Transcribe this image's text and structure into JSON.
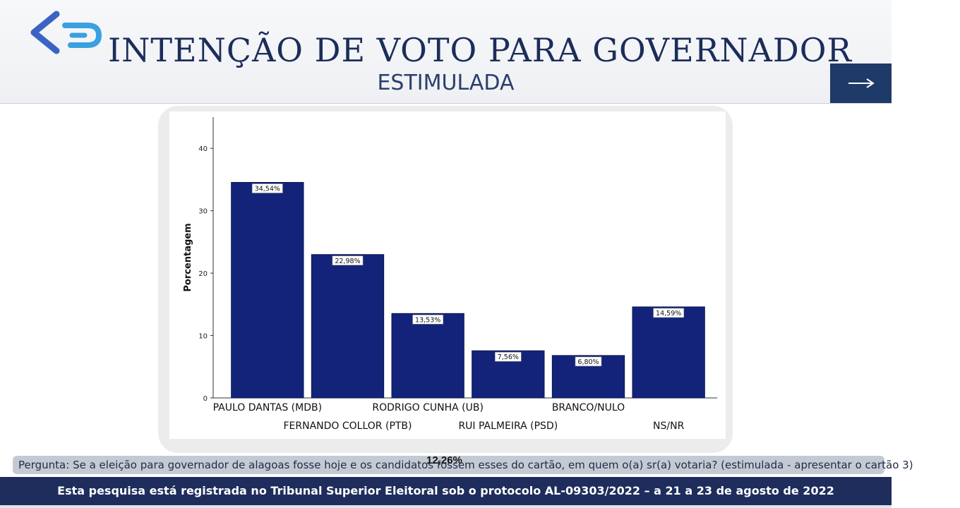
{
  "header": {
    "title": "INTENÇÃO DE VOTO PARA GOVERNADOR",
    "subtitle": "ESTIMULADA",
    "next_icon": "arrow-right-icon",
    "logo_icon": "brand-chevron-logo"
  },
  "colors": {
    "bar": "#13237a",
    "title": "#1c2d5a",
    "footer": "#1e2d5c",
    "button": "#1e3a68"
  },
  "chart_data": {
    "type": "bar",
    "categories": [
      "PAULO DANTAS (MDB)",
      "FERNANDO COLLOR (PTB)",
      "RODRIGO CUNHA (UB)",
      "RUI PALMEIRA (PSD)",
      "BRANCO/NULO",
      "NS/NR"
    ],
    "values": [
      34.54,
      22.98,
      13.53,
      7.56,
      6.8,
      14.59
    ],
    "value_labels": [
      "34,54%",
      "22,98%",
      "13,53%",
      "7,56%",
      "6,80%",
      "14,59%"
    ],
    "ylabel": "Porcentagem",
    "ylim": [
      0,
      45
    ],
    "yticks": [
      0,
      10,
      20,
      30,
      40
    ],
    "grid": false
  },
  "overlay_label": "12,26%",
  "question": "Pergunta: Se a eleição para governador de alagoas fosse hoje e os candidatos fossem esses do cartão, em quem o(a) sr(a) votaria? (estimulada - apresentar o cartão 3)",
  "footer": "Esta pesquisa está registrada no Tribunal Superior Eleitoral sob o protocolo AL-09303/2022 – a 21 a 23 de agosto de 2022"
}
